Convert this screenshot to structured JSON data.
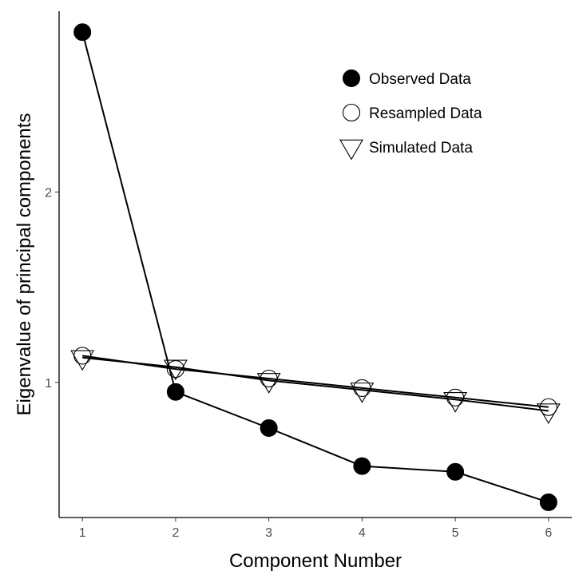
{
  "chart_data": {
    "type": "line",
    "xlabel": "Component Number",
    "ylabel": "Eigenvalue of principal components",
    "x": [
      1,
      2,
      3,
      4,
      5,
      6
    ],
    "xlim": [
      0.75,
      6.25
    ],
    "ylim": [
      0.29,
      2.95
    ],
    "x_ticks": [
      1,
      2,
      3,
      4,
      5,
      6
    ],
    "y_ticks": [
      1,
      2
    ],
    "grid": false,
    "legend_position": "top-right",
    "series": [
      {
        "name": "Observed Data",
        "marker": "filled-circle",
        "color": "#000000",
        "values": [
          2.84,
          0.95,
          0.76,
          0.56,
          0.53,
          0.37
        ]
      },
      {
        "name": "Resampled Data",
        "marker": "open-circle",
        "color": "#000000",
        "values": [
          1.14,
          1.07,
          1.02,
          0.97,
          0.92,
          0.87
        ]
      },
      {
        "name": "Simulated Data",
        "marker": "open-triangle-down",
        "color": "#000000",
        "values": [
          1.13,
          1.08,
          1.01,
          0.96,
          0.91,
          0.85
        ]
      }
    ]
  }
}
